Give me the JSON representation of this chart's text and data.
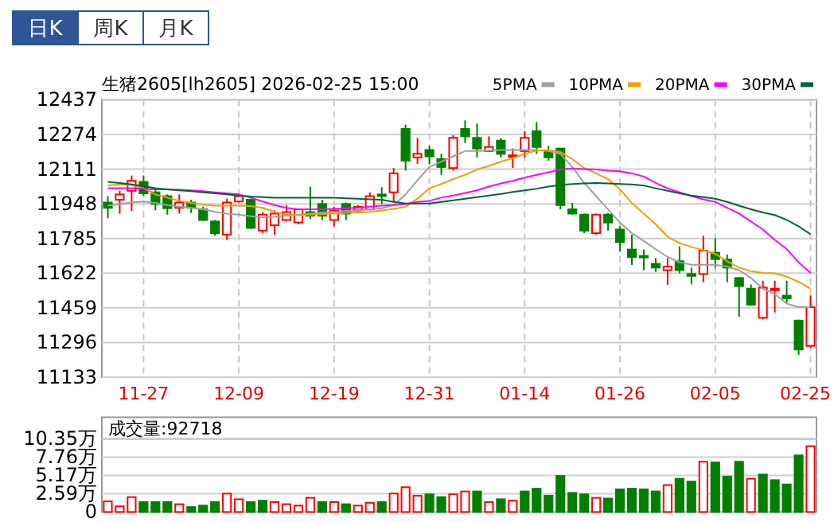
{
  "chart_data": [
    {
      "type": "candlestick",
      "title": "生猪2605[lh2605] 2026-02-25 15:00",
      "annotations": [
        "日K",
        "周K",
        "月K"
      ],
      "categories": [
        null,
        null,
        null,
        "11-27",
        null,
        null,
        null,
        null,
        null,
        null,
        null,
        "12-09",
        null,
        null,
        null,
        null,
        null,
        null,
        null,
        "12-19",
        null,
        null,
        null,
        null,
        null,
        null,
        null,
        "12-31",
        null,
        null,
        null,
        null,
        null,
        null,
        null,
        "01-14",
        null,
        null,
        null,
        null,
        null,
        null,
        null,
        "01-26",
        null,
        null,
        null,
        null,
        null,
        null,
        null,
        "02-05",
        null,
        null,
        null,
        null,
        null,
        null,
        null,
        "02-25"
      ],
      "ohlc": [
        [
          11954,
          11984,
          11880,
          11929
        ],
        [
          11967,
          12009,
          11902,
          11992
        ],
        [
          12009,
          12081,
          11915,
          12056
        ],
        [
          12051,
          12081,
          11984,
          11997
        ],
        [
          12002,
          12021,
          11917,
          11947
        ],
        [
          11984,
          11992,
          11897,
          11927
        ],
        [
          11929,
          11992,
          11902,
          11954
        ],
        [
          11954,
          11967,
          11905,
          11929
        ],
        [
          11922,
          11934,
          11867,
          11872
        ],
        [
          11865,
          11872,
          11798,
          11810
        ],
        [
          11803,
          11972,
          11778,
          11954
        ],
        [
          11959,
          11997,
          11954,
          11984
        ],
        [
          11967,
          11972,
          11830,
          11835
        ],
        [
          11822,
          11909,
          11810,
          11897
        ],
        [
          11847,
          11917,
          11803,
          11902
        ],
        [
          11872,
          11942,
          11865,
          11909
        ],
        [
          11860,
          11927,
          11852,
          11922
        ],
        [
          11909,
          12029,
          11877,
          11892
        ],
        [
          11947,
          11967,
          11872,
          11892
        ],
        [
          11872,
          11934,
          11842,
          11917
        ],
        [
          11947,
          11954,
          11872,
          11902
        ],
        [
          11917,
          11942,
          11910,
          11934
        ],
        [
          11922,
          12002,
          11917,
          11984
        ],
        [
          11992,
          12026,
          11947,
          11984
        ],
        [
          12002,
          12116,
          11959,
          12091
        ],
        [
          12300,
          12320,
          12104,
          12151
        ],
        [
          12166,
          12258,
          12136,
          12183
        ],
        [
          12201,
          12220,
          12133,
          12171
        ],
        [
          12158,
          12183,
          12084,
          12121
        ],
        [
          12116,
          12270,
          12104,
          12258
        ],
        [
          12300,
          12340,
          12233,
          12265
        ],
        [
          12258,
          12325,
          12166,
          12208
        ],
        [
          12196,
          12265,
          12191,
          12215
        ],
        [
          12245,
          12258,
          12166,
          12183
        ],
        [
          12171,
          12208,
          12116,
          12176
        ],
        [
          12196,
          12290,
          12166,
          12258
        ],
        [
          12290,
          12332,
          12183,
          12215
        ],
        [
          12196,
          12220,
          12151,
          12166
        ],
        [
          12208,
          12208,
          11922,
          11942
        ],
        [
          11922,
          11952,
          11897,
          11902
        ],
        [
          11897,
          11902,
          11810,
          11822
        ],
        [
          11810,
          11902,
          11803,
          11897
        ],
        [
          11897,
          11905,
          11822,
          11860
        ],
        [
          11827,
          11842,
          11723,
          11768
        ],
        [
          11733,
          11803,
          11661,
          11698
        ],
        [
          11703,
          11733,
          11636,
          11698
        ],
        [
          11666,
          11693,
          11628,
          11648
        ],
        [
          11636,
          11693,
          11566,
          11653
        ],
        [
          11678,
          11748,
          11621,
          11636
        ],
        [
          11618,
          11648,
          11569,
          11609
        ],
        [
          11618,
          11798,
          11579,
          11728
        ],
        [
          11718,
          11785,
          11648,
          11688
        ],
        [
          11686,
          11710,
          11579,
          11648
        ],
        [
          11599,
          11604,
          11417,
          11561
        ],
        [
          11549,
          11569,
          11469,
          11474
        ],
        [
          11412,
          11586,
          11405,
          11554
        ],
        [
          11544,
          11586,
          11437,
          11549
        ],
        [
          11516,
          11586,
          11482,
          11504
        ],
        [
          11399,
          11404,
          11238,
          11263
        ],
        [
          11280,
          11517,
          11270,
          11462
        ]
      ],
      "colors": [
        "#008000",
        "#ff0000",
        "#ff0000",
        "#008000",
        "#008000",
        "#008000",
        "#ff0000",
        "#008000",
        "#008000",
        "#008000",
        "#ff0000",
        "#ff0000",
        "#008000",
        "#ff0000",
        "#ff0000",
        "#ff0000",
        "#ff0000",
        "#008000",
        "#008000",
        "#ff0000",
        "#008000",
        "#ff0000",
        "#ff0000",
        "#008000",
        "#ff0000",
        "#008000",
        "#ff0000",
        "#008000",
        "#008000",
        "#ff0000",
        "#008000",
        "#008000",
        "#ff0000",
        "#008000",
        "#ff0000",
        "#ff0000",
        "#008000",
        "#008000",
        "#008000",
        "#008000",
        "#008000",
        "#ff0000",
        "#008000",
        "#008000",
        "#008000",
        "#008000",
        "#008000",
        "#ff0000",
        "#008000",
        "#008000",
        "#ff0000",
        "#008000",
        "#008000",
        "#008000",
        "#008000",
        "#ff0000",
        "#ff0000",
        "#008000",
        "#008000",
        "#ff0000"
      ],
      "series": [
        {
          "name": "5PMA",
          "type": "line",
          "color": "#a0a0a0",
          "values": [
            11939,
            11947,
            11954,
            11959,
            11952,
            11942,
            11934,
            11929,
            11922,
            11910,
            11902,
            11897,
            11890,
            11885,
            11887,
            11892,
            11897,
            11902,
            11907,
            11910,
            11915,
            11917,
            11922,
            11927,
            11942,
            11992,
            12059,
            12121,
            12146,
            12171,
            12196,
            12196,
            12198,
            12201,
            12201,
            12201,
            12201,
            12196,
            12183,
            12121,
            12046,
            11984,
            11922,
            11860,
            11810,
            11773,
            11735,
            11698,
            11673,
            11661,
            11661,
            11661,
            11653,
            11636,
            11599,
            11549,
            11524,
            11479,
            11462,
            11462
          ]
        },
        {
          "name": "10PMA",
          "type": "line",
          "color": "#f0a000",
          "values": [
            12034,
            12039,
            12036,
            12021,
            11992,
            11977,
            11962,
            11952,
            11944,
            11939,
            11939,
            11939,
            11937,
            11929,
            11910,
            11897,
            11895,
            11897,
            11900,
            11902,
            11905,
            11907,
            11910,
            11917,
            11924,
            11934,
            11972,
            12021,
            12041,
            12064,
            12084,
            12109,
            12126,
            12146,
            12163,
            12183,
            12198,
            12201,
            12191,
            12158,
            12116,
            12091,
            12064,
            12016,
            11952,
            11902,
            11852,
            11793,
            11763,
            11745,
            11730,
            11713,
            11678,
            11648,
            11631,
            11623,
            11621,
            11606,
            11581,
            11549
          ]
        },
        {
          "name": "20PMA",
          "type": "line",
          "color": "#ff00ff",
          "values": [
            12021,
            12021,
            12021,
            12019,
            12016,
            12016,
            12014,
            12011,
            12007,
            12002,
            11997,
            11992,
            11977,
            11959,
            11942,
            11929,
            11922,
            11922,
            11922,
            11924,
            11927,
            11929,
            11934,
            11939,
            11942,
            11947,
            11957,
            11962,
            11977,
            11987,
            11999,
            12011,
            12029,
            12044,
            12056,
            12071,
            12084,
            12096,
            12109,
            12114,
            12111,
            12109,
            12104,
            12101,
            12091,
            12076,
            12046,
            12021,
            12002,
            11984,
            11969,
            11957,
            11929,
            11902,
            11865,
            11827,
            11778,
            11735,
            11673,
            11623
          ]
        },
        {
          "name": "30PMA",
          "type": "line",
          "color": "#006633",
          "values": [
            12051,
            12046,
            12039,
            12031,
            12021,
            12016,
            12011,
            12007,
            12002,
            11997,
            11992,
            11987,
            11982,
            11979,
            11977,
            11977,
            11977,
            11977,
            11977,
            11977,
            11974,
            11972,
            11969,
            11967,
            11957,
            11949,
            11949,
            11949,
            11957,
            11964,
            11972,
            11979,
            11987,
            11994,
            12004,
            12011,
            12019,
            12029,
            12036,
            12041,
            12044,
            12046,
            12044,
            12041,
            12039,
            12034,
            12021,
            12009,
            11997,
            11987,
            11979,
            11972,
            11957,
            11939,
            11922,
            11907,
            11895,
            11872,
            11842,
            11805
          ]
        }
      ],
      "ylim": [
        11133,
        12437
      ],
      "yticks": [
        11133,
        11296,
        11459,
        11622,
        11785,
        11948,
        12111,
        12274,
        12437
      ],
      "grid": true,
      "legend": "top right"
    },
    {
      "type": "bar",
      "title": "成交量:92718",
      "tick_labels": "y",
      "categories": [
        null,
        null,
        null,
        null,
        null,
        null,
        null,
        null,
        null,
        null,
        null,
        null,
        null,
        null,
        null,
        null,
        null,
        null,
        null,
        null,
        null,
        null,
        null,
        null,
        null,
        null,
        null,
        null,
        null,
        null,
        null,
        null,
        null,
        null,
        null,
        null,
        null,
        null,
        null,
        null,
        null,
        null,
        null,
        null,
        null,
        null,
        null,
        null,
        null,
        null,
        null,
        null,
        null,
        null,
        null,
        null,
        null,
        null,
        null,
        null
      ],
      "values": [
        1.5,
        0.8,
        2.1,
        1.4,
        1.4,
        1.4,
        1.1,
        0.7,
        0.9,
        1.4,
        2.6,
        1.8,
        1.4,
        1.6,
        1.4,
        1.1,
        0.9,
        2.0,
        1.4,
        1.4,
        1.1,
        0.9,
        1.3,
        1.4,
        2.6,
        3.5,
        2.3,
        2.5,
        2.1,
        2.5,
        2.9,
        2.9,
        1.4,
        1.8,
        1.6,
        2.9,
        3.3,
        2.3,
        5.1,
        2.7,
        2.5,
        2.0,
        1.9,
        3.2,
        3.3,
        3.2,
        2.9,
        3.8,
        4.7,
        4.3,
        7.1,
        7.0,
        5.0,
        7.1,
        4.7,
        5.3,
        4.5,
        3.9,
        8.0,
        9.3
      ],
      "colors": [
        "#ff0000",
        "#ff0000",
        "#ff0000",
        "#008000",
        "#008000",
        "#008000",
        "#ff0000",
        "#008000",
        "#008000",
        "#008000",
        "#ff0000",
        "#ff0000",
        "#008000",
        "#008000",
        "#ff0000",
        "#ff0000",
        "#ff0000",
        "#ff0000",
        "#008000",
        "#ff0000",
        "#008000",
        "#ff0000",
        "#ff0000",
        "#008000",
        "#ff0000",
        "#ff0000",
        "#ff0000",
        "#008000",
        "#008000",
        "#ff0000",
        "#ff0000",
        "#008000",
        "#ff0000",
        "#008000",
        "#ff0000",
        "#008000",
        "#008000",
        "#008000",
        "#008000",
        "#008000",
        "#008000",
        "#ff0000",
        "#008000",
        "#008000",
        "#008000",
        "#008000",
        "#008000",
        "#ff0000",
        "#008000",
        "#008000",
        "#ff0000",
        "#008000",
        "#008000",
        "#008000",
        "#ff0000",
        "#008000",
        "#008000",
        "#008000",
        "#008000",
        "#ff0000"
      ],
      "ylim": [
        0,
        10.35
      ],
      "yticks": [
        0,
        {
          "value": 2.59,
          "label": "2.59万"
        },
        {
          "value": 5.17,
          "label": "5.17万"
        },
        {
          "value": 7.76,
          "label": "7.76万"
        },
        {
          "value": 10.35,
          "label": "10.35万"
        }
      ],
      "grid": "y"
    }
  ]
}
